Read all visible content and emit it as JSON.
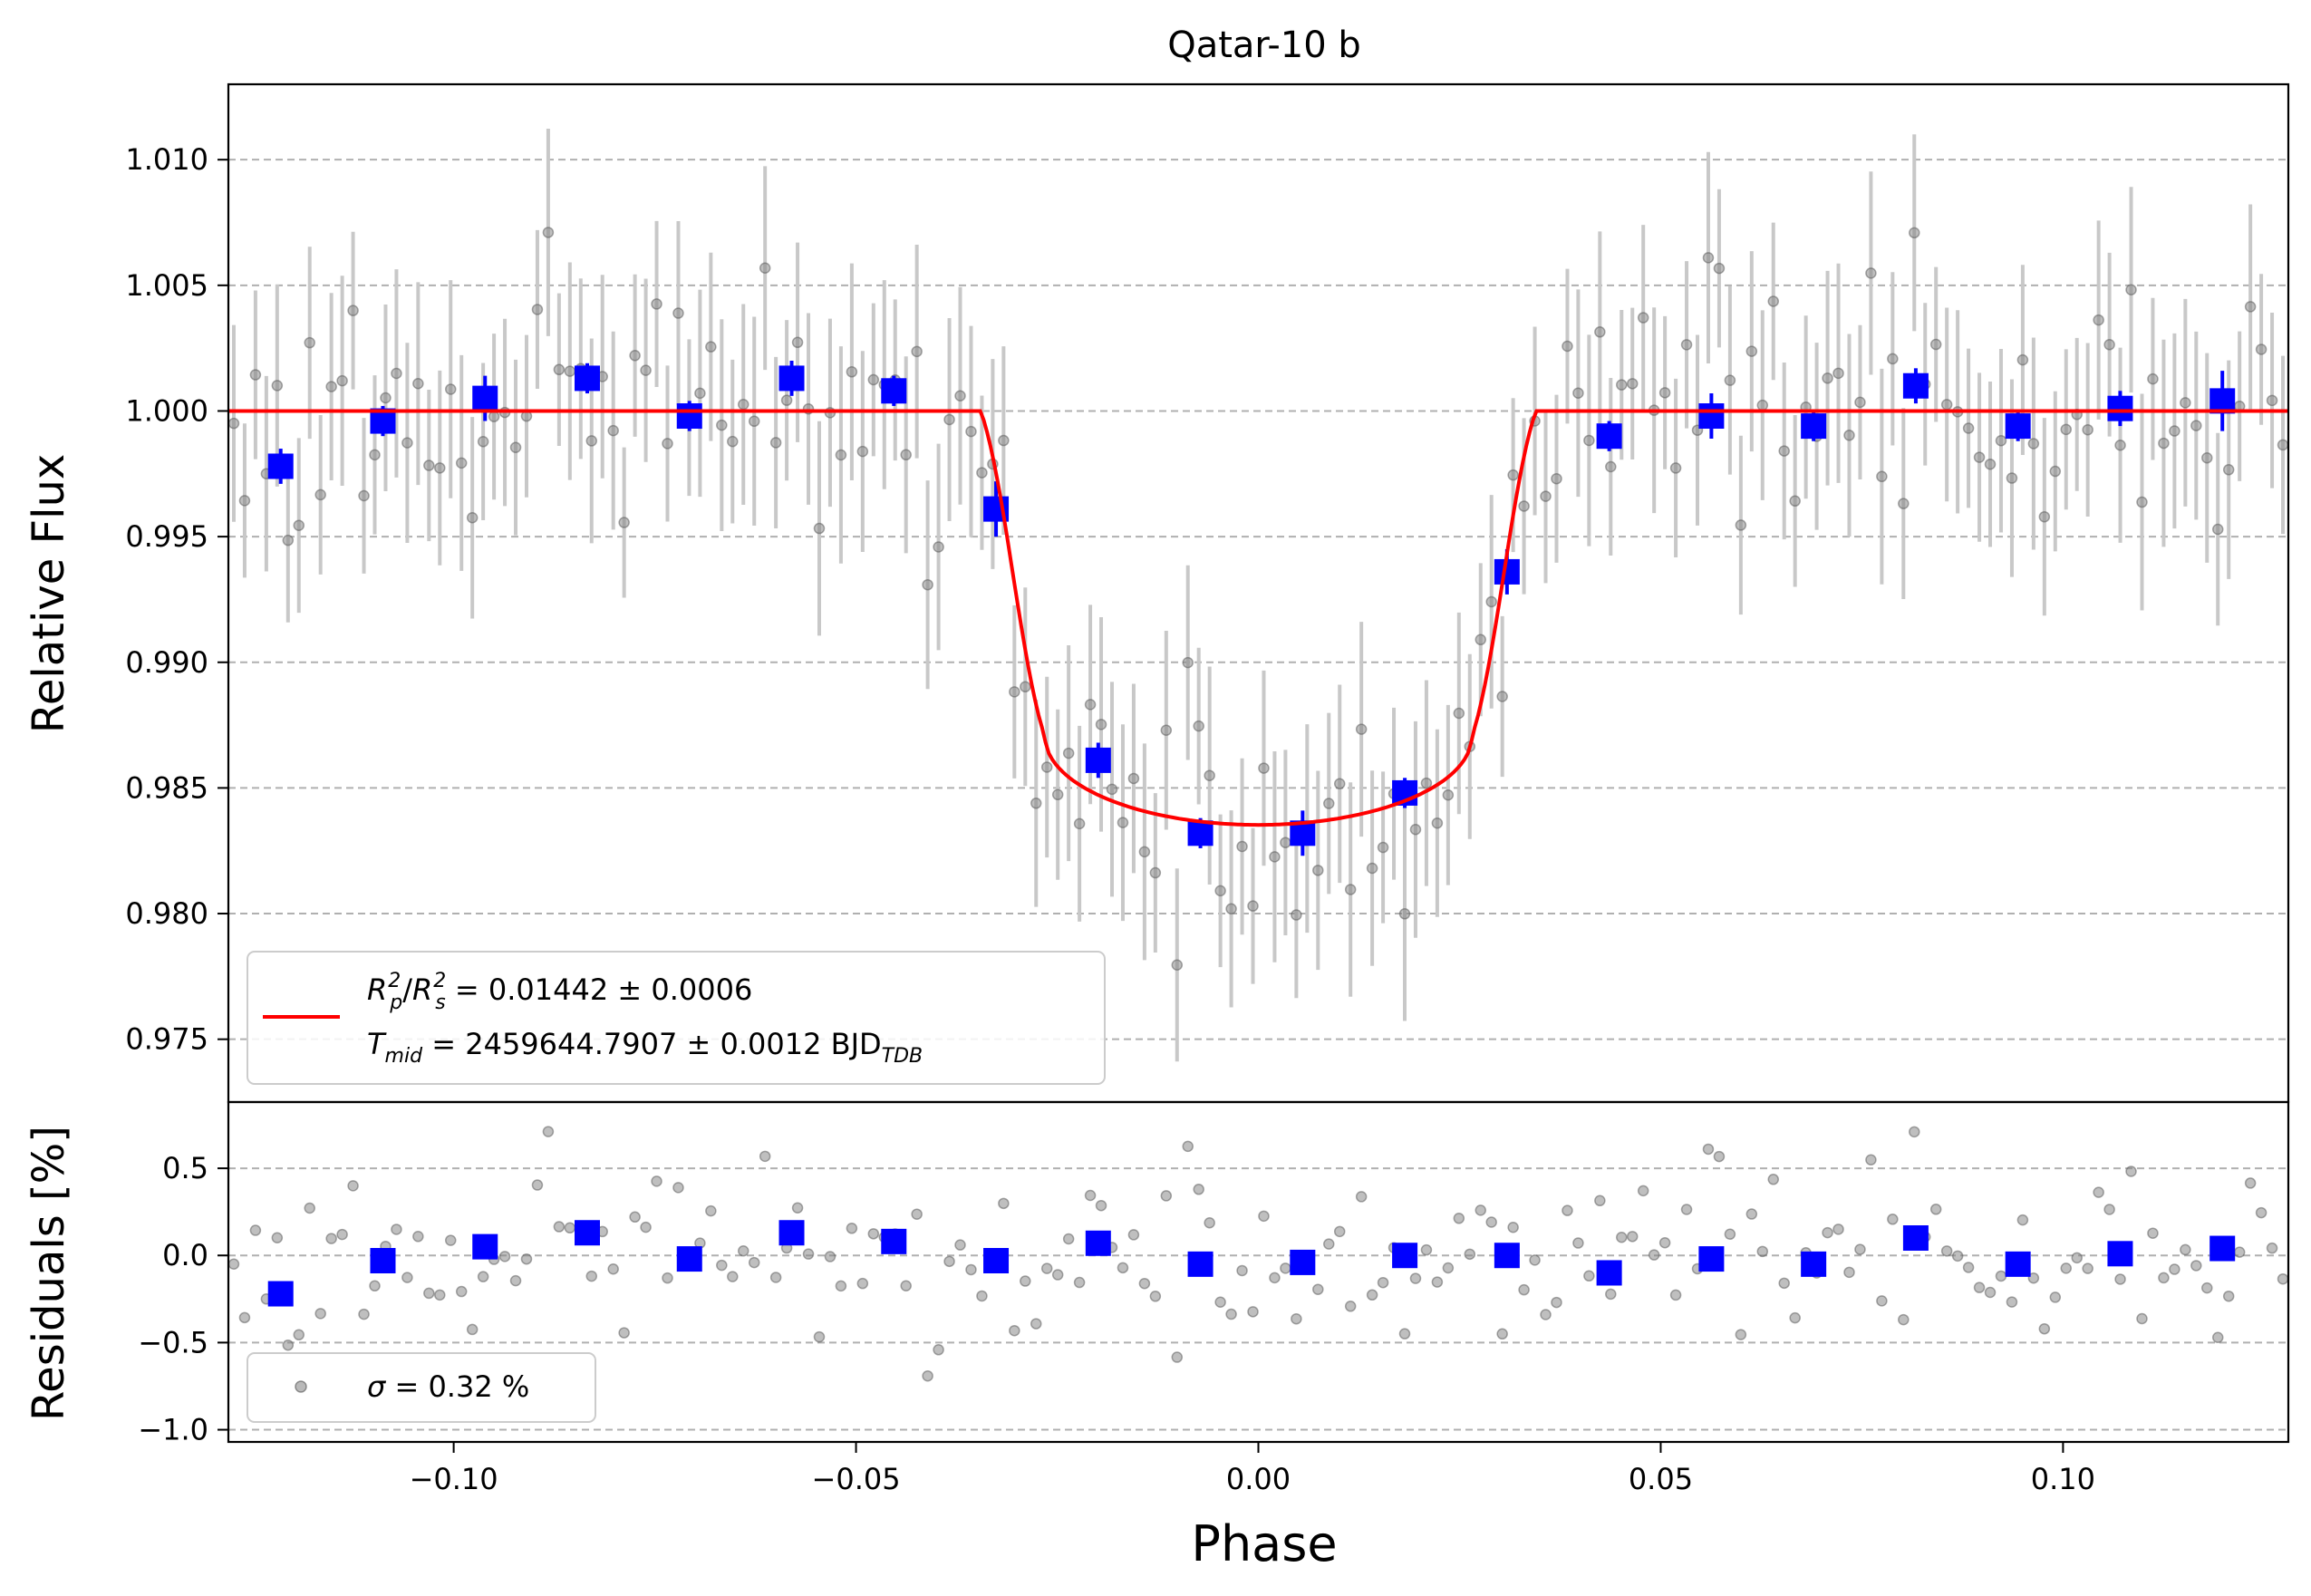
{
  "chart_data": [
    {
      "type": "scatter",
      "title": "Qatar-10 b",
      "xlabel": "",
      "ylabel": "Relative Flux",
      "xlim": [
        -0.128,
        0.128
      ],
      "ylim": [
        0.9725,
        1.013
      ],
      "grid": "horizontal dashed",
      "yticks": [
        1.01,
        1.005,
        1.0,
        0.995,
        0.99,
        0.985,
        0.98,
        0.975
      ],
      "yticklabels": [
        "1.010",
        "1.005",
        "1.000",
        "0.995",
        "0.990",
        "0.985",
        "0.980",
        "0.975"
      ],
      "legend": {
        "placement": "lower-left",
        "line1_prefix": "R",
        "line1_rest": " = 0.01442 ± 0.0006",
        "line2_prefix": "T",
        "line2_sub": "mid",
        "line2_rest": " = 2459644.7907 ± 0.0012 BJD",
        "line2_suffix_sub": "TDB"
      },
      "colors": {
        "model": "#ff0000",
        "binned": "#0000ff",
        "raw": "#808080",
        "errorbar": "#c8c8c8"
      },
      "model": {
        "name": "transit model",
        "depth": 0.01442,
        "baseline": 1.0,
        "t1": -0.0345,
        "t2": -0.0265,
        "t3": 0.0265,
        "t4": 0.0345,
        "bottom": 0.98353
      },
      "binned": {
        "x": [
          -0.1215,
          -0.1088,
          -0.0961,
          -0.0834,
          -0.0707,
          -0.058,
          -0.0453,
          -0.0326,
          -0.0199,
          -0.0072,
          0.0055,
          0.0182,
          0.0309,
          0.0436,
          0.0563,
          0.069,
          0.0817,
          0.0944,
          0.1071,
          0.1198
        ],
        "y": [
          0.9978,
          0.9996,
          1.0005,
          1.0013,
          0.9998,
          1.0013,
          1.0008,
          0.9961,
          0.9861,
          0.9832,
          0.9832,
          0.9848,
          0.9936,
          0.999,
          0.9998,
          0.9994,
          1.001,
          0.9994,
          1.0001,
          1.0004
        ],
        "yerr": [
          0.0007,
          0.0006,
          0.0009,
          0.0006,
          0.0006,
          0.0007,
          0.0006,
          0.0011,
          0.0007,
          0.0006,
          0.0009,
          0.0006,
          0.0009,
          0.0006,
          0.0009,
          0.0006,
          0.0007,
          0.0006,
          0.0007,
          0.0012
        ]
      },
      "raw": {
        "count": 190,
        "sigma": 0.0032,
        "errbar_half": 0.0035,
        "seed": 17
      }
    },
    {
      "type": "scatter",
      "title": "",
      "xlabel": "Phase",
      "ylabel": "Residuals [%]",
      "xlim": [
        -0.128,
        0.128
      ],
      "ylim": [
        -1.07,
        0.88
      ],
      "grid": "horizontal dashed",
      "yticks": [
        0.5,
        0.0,
        -0.5,
        -1.0
      ],
      "yticklabels": [
        "0.5",
        "0.0",
        "−0.5",
        "−1.0"
      ],
      "xticks": [
        -0.1,
        -0.05,
        0.0,
        0.05,
        0.1
      ],
      "xticklabels": [
        "−0.10",
        "−0.05",
        "0.00",
        "0.05",
        "0.10"
      ],
      "legend": {
        "placement": "lower-left",
        "label": " = 0.32 %",
        "symbol": "σ"
      },
      "binned": {
        "x": [
          -0.1215,
          -0.1088,
          -0.0961,
          -0.0834,
          -0.0707,
          -0.058,
          -0.0453,
          -0.0326,
          -0.0199,
          -0.0072,
          0.0055,
          0.0182,
          0.0309,
          0.0436,
          0.0563,
          0.069,
          0.0817,
          0.0944,
          0.1071,
          0.1198
        ],
        "y": [
          -0.22,
          -0.03,
          0.05,
          0.13,
          -0.02,
          0.13,
          0.08,
          -0.03,
          0.07,
          -0.05,
          -0.04,
          0.0,
          0.0,
          -0.1,
          -0.02,
          -0.05,
          0.1,
          -0.05,
          0.01,
          0.04
        ]
      }
    }
  ]
}
